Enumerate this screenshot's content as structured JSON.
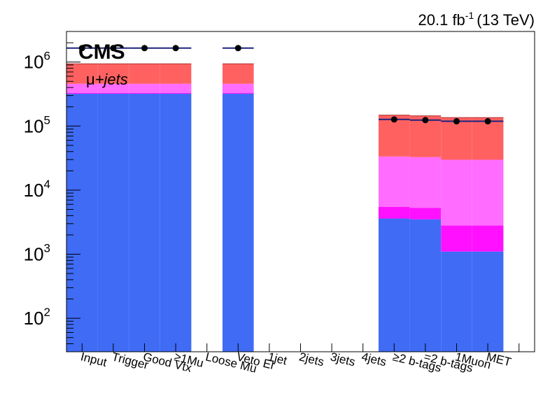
{
  "header": {
    "lumi_value": "20.1 fb",
    "lumi_exp": "-1",
    "energy": "(13 TeV)"
  },
  "labels": {
    "experiment": "CMS",
    "channel_mu": "μ",
    "channel_rest": "+jets"
  },
  "colors": {
    "blue": "#3f6bf5",
    "magenta": "#ff11ff",
    "pink": "#ff6cff",
    "red": "#ff6161",
    "data_line": "#1a237e",
    "marker": "#000000"
  },
  "chart_data": {
    "type": "bar",
    "stacked": true,
    "log_y": true,
    "ylim": [
      30,
      3000000
    ],
    "categories": [
      "Input",
      "Trigger",
      "Good Vtx",
      "≥1Mu",
      "Loose Mu",
      "Veto El",
      "1jet",
      "2jets",
      "3jets",
      "4jets",
      "≥2 b-tags",
      "=2 b-tags",
      "1Muon",
      "MET"
    ],
    "y_ticks": [
      {
        "value": 100,
        "base": "10",
        "exp": "2"
      },
      {
        "value": 1000,
        "base": "10",
        "exp": "3"
      },
      {
        "value": 10000,
        "base": "10",
        "exp": "4"
      },
      {
        "value": 100000,
        "base": "10",
        "exp": "5"
      },
      {
        "value": 1000000,
        "base": "10",
        "exp": "6"
      }
    ],
    "series": [
      {
        "color_key": "blue",
        "values": [
          320000,
          320000,
          320000,
          320000,
          0,
          320000,
          0,
          0,
          0,
          0,
          3600,
          3500,
          1100,
          1100
        ]
      },
      {
        "color_key": "magenta",
        "values": [
          8000,
          8000,
          8000,
          8000,
          0,
          8000,
          0,
          0,
          0,
          0,
          1900,
          1800,
          1700,
          1700
        ]
      },
      {
        "color_key": "pink",
        "values": [
          130000,
          130000,
          130000,
          130000,
          0,
          130000,
          0,
          0,
          0,
          0,
          28000,
          27500,
          27000,
          27000
        ]
      },
      {
        "color_key": "red",
        "values": [
          480000,
          480000,
          480000,
          480000,
          0,
          480000,
          0,
          0,
          0,
          0,
          115000,
          112000,
          106000,
          106000
        ]
      }
    ],
    "data_points": [
      1650000,
      1650000,
      1650000,
      1650000,
      0,
      1650000,
      0,
      0,
      0,
      0,
      127000,
      124000,
      119000,
      119000
    ]
  }
}
